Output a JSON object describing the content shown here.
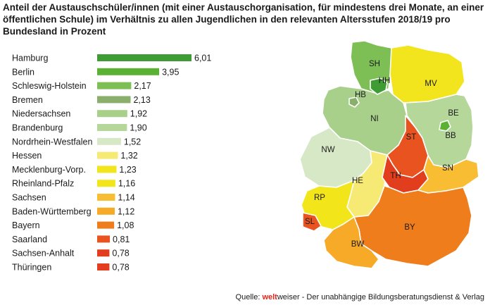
{
  "title": "Anteil der Austauschschüler/innen (mit einer Austauschorganisation, für mindestens drei Monate, an einer öffentlichen Schule) im Verhältnis zu allen Jugendlichen in den relevanten Altersstufen 2018/19 pro Bundesland in Prozent",
  "source": {
    "prefix": "Quelle: ",
    "brand": "welt",
    "suffix": "weiser - Der unabhängige Bildungsberatungsdienst & Verlag"
  },
  "chart_data": {
    "type": "bar",
    "orientation": "horizontal",
    "categories": [
      "Hamburg",
      "Berlin",
      "Schleswig-Holstein",
      "Bremen",
      "Niedersachsen",
      "Brandenburg",
      "Nordrhein-Westfalen",
      "Hessen",
      "Mecklenburg-Vorp.",
      "Rheinland-Pfalz",
      "Sachsen",
      "Baden-Württemberg",
      "Bayern",
      "Saarland",
      "Sachsen-Anhalt",
      "Thüringen"
    ],
    "values": [
      6.01,
      3.95,
      2.17,
      2.13,
      1.92,
      1.9,
      1.52,
      1.32,
      1.23,
      1.16,
      1.14,
      1.12,
      1.08,
      0.81,
      0.78,
      0.78
    ],
    "value_labels": [
      "6,01",
      "3,95",
      "2,17",
      "2,13",
      "1,92",
      "1,90",
      "1,52",
      "1,32",
      "1,23",
      "1,16",
      "1,14",
      "1,12",
      "1,08",
      "0,81",
      "0,78",
      "0,78"
    ],
    "colors": [
      "#3f9c35",
      "#5bb132",
      "#7dbf55",
      "#8aaf6a",
      "#a8d08a",
      "#b5d79a",
      "#d7e8c6",
      "#f6ea75",
      "#f3e51d",
      "#f2e61b",
      "#f9bd33",
      "#f7a928",
      "#ef7d1b",
      "#e8531f",
      "#e23d1d",
      "#e23d1d"
    ],
    "xlim": [
      0,
      6.01
    ],
    "grid": false,
    "legend": "none"
  },
  "map": {
    "regions": [
      {
        "code": "SH",
        "color": "#7dbf55"
      },
      {
        "code": "HH",
        "color": "#3f9c35"
      },
      {
        "code": "MV",
        "color": "#f3e51d"
      },
      {
        "code": "HB",
        "color": "#8aaf6a"
      },
      {
        "code": "NI",
        "color": "#a8d08a"
      },
      {
        "code": "BE",
        "color": "#5bb132"
      },
      {
        "code": "BB",
        "color": "#b5d79a"
      },
      {
        "code": "ST",
        "color": "#e8531f"
      },
      {
        "code": "NW",
        "color": "#d7e8c6"
      },
      {
        "code": "HE",
        "color": "#f6ea75"
      },
      {
        "code": "TH",
        "color": "#e23d1d"
      },
      {
        "code": "SN",
        "color": "#f9bd33"
      },
      {
        "code": "RP",
        "color": "#f2e61b"
      },
      {
        "code": "SL",
        "color": "#e8531f"
      },
      {
        "code": "BY",
        "color": "#ef7d1b"
      },
      {
        "code": "BW",
        "color": "#f7a928"
      }
    ]
  }
}
